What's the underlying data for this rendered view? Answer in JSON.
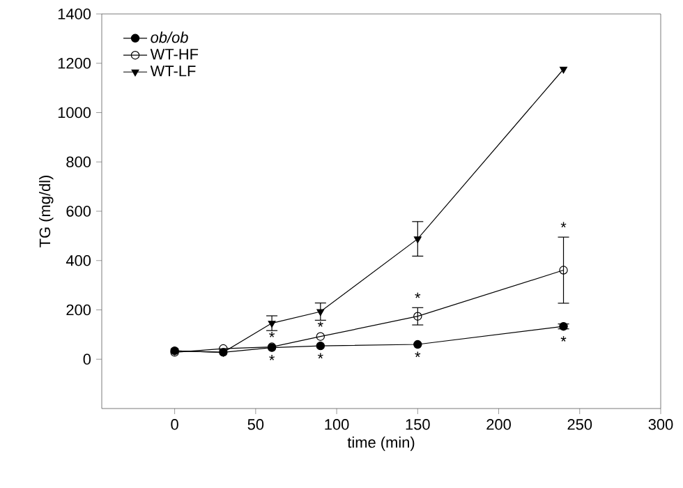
{
  "chart_data": {
    "type": "line",
    "xlabel": "time (min)",
    "ylabel": "TG (mg/dl)",
    "x": [
      0,
      30,
      60,
      90,
      150,
      240
    ],
    "series": [
      {
        "name": "*ob/ob*",
        "color": "#000000",
        "marker": "circle",
        "values": [
          34,
          28,
          47,
          54,
          60,
          133
        ],
        "errors": [
          null,
          null,
          null,
          null,
          null,
          10
        ]
      },
      {
        "name": "WT-HF",
        "color": "#000000",
        "marker": "open circle",
        "values": [
          28,
          43,
          50,
          92,
          174,
          361
        ],
        "errors": [
          null,
          null,
          null,
          null,
          35,
          134
        ]
      },
      {
        "name": "WT-LF",
        "color": "#000000",
        "marker": "triangle down",
        "values": [
          34,
          28,
          146,
          193,
          488,
          1176
        ],
        "errors": [
          null,
          null,
          30,
          35,
          70,
          null
        ]
      }
    ],
    "xlim": [
      -45,
      300
    ],
    "xticks": [
      0,
      50,
      100,
      150,
      200,
      250,
      300
    ],
    "ylim": [
      -200,
      1400
    ],
    "yticks": [
      0,
      200,
      400,
      600,
      800,
      1000,
      1200,
      1400
    ],
    "grid": false,
    "legend": "top left",
    "annotations": [
      {
        "text": "*",
        "x": 60,
        "y": 50
      },
      {
        "text": "*",
        "x": 60,
        "y": 47
      },
      {
        "text": "*",
        "x": 90,
        "y": 92
      },
      {
        "text": "*",
        "x": 90,
        "y": 54
      },
      {
        "text": "*",
        "x": 150,
        "y": 209
      },
      {
        "text": "*",
        "x": 150,
        "y": 60
      },
      {
        "text": "*",
        "x": 240,
        "y": 495
      },
      {
        "text": "*",
        "x": 240,
        "y": 123
      }
    ]
  }
}
